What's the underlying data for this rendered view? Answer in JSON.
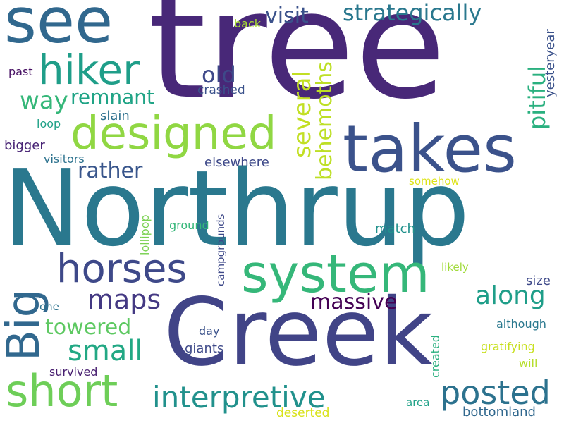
{
  "words": {
    "tree": {
      "text": "tree",
      "color": "#482878"
    },
    "northrup": {
      "text": "Northrup",
      "color": "#2a788e"
    },
    "creek": {
      "text": "Creek",
      "color": "#414487"
    },
    "system": {
      "text": "system",
      "color": "#35b779"
    },
    "takes": {
      "text": "takes",
      "color": "#3b528b"
    },
    "see": {
      "text": "see",
      "color": "#31688e"
    },
    "designed": {
      "text": "designed",
      "color": "#90d743"
    },
    "short": {
      "text": "short",
      "color": "#6ece58"
    },
    "horses": {
      "text": "horses",
      "color": "#3e4989"
    },
    "hiker": {
      "text": "hiker",
      "color": "#1f9e89"
    },
    "big": {
      "text": "Big",
      "color": "#31688e"
    },
    "posted": {
      "text": "posted",
      "color": "#2c728e"
    },
    "interpretive": {
      "text": "interpretive",
      "color": "#21918c"
    },
    "strategically": {
      "text": "strategically",
      "color": "#2a788e"
    },
    "visit": {
      "text": "visit",
      "color": "#3b528b"
    },
    "small": {
      "text": "small",
      "color": "#22a884"
    },
    "maps": {
      "text": "maps",
      "color": "#443983"
    },
    "along": {
      "text": "along",
      "color": "#1f9e89"
    },
    "massive": {
      "text": "massive",
      "color": "#440154"
    },
    "towered": {
      "text": "towered",
      "color": "#5ec962"
    },
    "remnant": {
      "text": "remnant",
      "color": "#20a486"
    },
    "rather": {
      "text": "rather",
      "color": "#39568c"
    },
    "old": {
      "text": "old",
      "color": "#3e4989"
    },
    "way": {
      "text": "way",
      "color": "#35b779"
    },
    "several": {
      "text": "several",
      "color": "#c2df23"
    },
    "behemoths": {
      "text": "behemoths",
      "color": "#bddf26"
    },
    "pitiful": {
      "text": "pitiful",
      "color": "#2ab07f"
    },
    "elsewhere": {
      "text": "elsewhere",
      "color": "#3e4989"
    },
    "bigger": {
      "text": "bigger",
      "color": "#482475"
    },
    "slain": {
      "text": "slain",
      "color": "#2d708e"
    },
    "crashed": {
      "text": "crashed",
      "color": "#3b528b"
    },
    "visitors": {
      "text": "visitors",
      "color": "#2c728e"
    },
    "loop": {
      "text": "loop",
      "color": "#1fa187"
    },
    "past": {
      "text": "past",
      "color": "#471063"
    },
    "back": {
      "text": "back",
      "color": "#a8db34"
    },
    "yesteryear": {
      "text": "yesteryear",
      "color": "#3b528b"
    },
    "somehow": {
      "text": "somehow",
      "color": "#dde318"
    },
    "lollipop": {
      "text": "lollipop",
      "color": "#7ad151"
    },
    "ground": {
      "text": "ground",
      "color": "#35b779"
    },
    "campgrounds": {
      "text": "campgrounds",
      "color": "#3e4989"
    },
    "match": {
      "text": "match",
      "color": "#21918c"
    },
    "likely": {
      "text": "likely",
      "color": "#a0da39"
    },
    "size": {
      "text": "size",
      "color": "#3e4989"
    },
    "one": {
      "text": "one",
      "color": "#2c728e"
    },
    "day": {
      "text": "day",
      "color": "#3b528b"
    },
    "giants": {
      "text": "giants",
      "color": "#3e4989"
    },
    "although": {
      "text": "although",
      "color": "#2a788e"
    },
    "gratifying": {
      "text": "gratifying",
      "color": "#c8e020"
    },
    "will": {
      "text": "will",
      "color": "#b5de2b"
    },
    "created": {
      "text": "created",
      "color": "#2ab07f"
    },
    "survived": {
      "text": "survived",
      "color": "#481f70"
    },
    "area": {
      "text": "area",
      "color": "#1fa187"
    },
    "bottomland": {
      "text": "bottomland",
      "color": "#31688e"
    },
    "deserted": {
      "text": "deserted",
      "color": "#d8e219"
    }
  }
}
